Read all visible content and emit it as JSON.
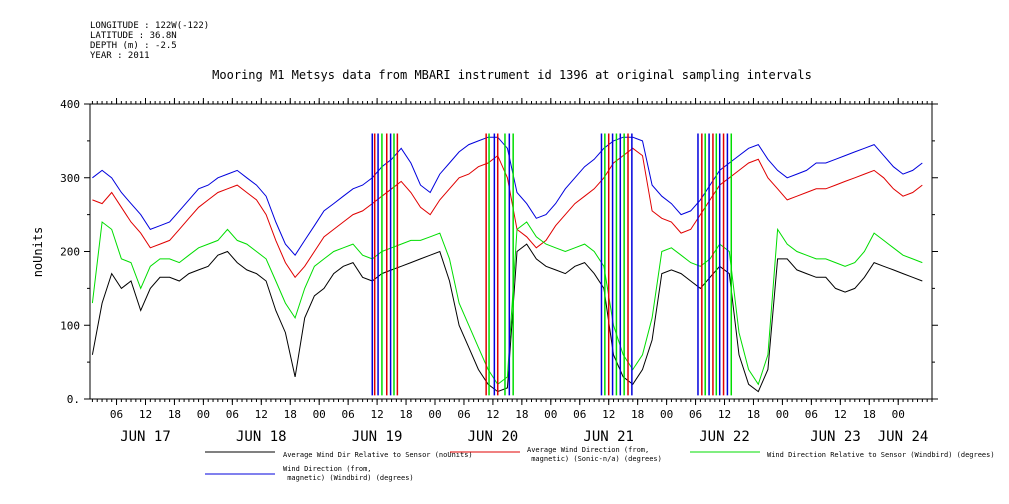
{
  "header": {
    "longitude": "LONGITUDE : 122W(-122)",
    "latitude": "LATITUDE : 36.8N",
    "depth": "DEPTH (m) : -2.5",
    "year": "YEAR : 2011"
  },
  "chart_data": {
    "type": "line",
    "title": "Mooring M1 Metsys data from MBARI instrument id 1396 at original sampling intervals",
    "ylabel": "noUnits",
    "xlabel": "",
    "ylim": [
      0,
      400
    ],
    "xlim": [
      0.5,
      175
    ],
    "y_ticks": [
      0,
      100,
      200,
      300,
      400
    ],
    "y_tick_labels": [
      "0.",
      "100",
      "200",
      "300",
      "400"
    ],
    "x_unit": "hours since 2011-06-16 00:00",
    "hour_ticks": [
      {
        "x": 6,
        "label": "06"
      },
      {
        "x": 12,
        "label": "12"
      },
      {
        "x": 18,
        "label": "18"
      },
      {
        "x": 24,
        "label": "00"
      },
      {
        "x": 30,
        "label": "06"
      },
      {
        "x": 36,
        "label": "12"
      },
      {
        "x": 42,
        "label": "18"
      },
      {
        "x": 48,
        "label": "00"
      },
      {
        "x": 54,
        "label": "06"
      },
      {
        "x": 60,
        "label": "12"
      },
      {
        "x": 66,
        "label": "18"
      },
      {
        "x": 72,
        "label": "00"
      },
      {
        "x": 78,
        "label": "06"
      },
      {
        "x": 84,
        "label": "12"
      },
      {
        "x": 90,
        "label": "18"
      },
      {
        "x": 96,
        "label": "00"
      },
      {
        "x": 102,
        "label": "06"
      },
      {
        "x": 108,
        "label": "12"
      },
      {
        "x": 114,
        "label": "18"
      },
      {
        "x": 120,
        "label": "00"
      },
      {
        "x": 126,
        "label": "06"
      },
      {
        "x": 132,
        "label": "12"
      },
      {
        "x": 138,
        "label": "18"
      },
      {
        "x": 144,
        "label": "00"
      },
      {
        "x": 150,
        "label": "06"
      },
      {
        "x": 156,
        "label": "12"
      },
      {
        "x": 162,
        "label": "18"
      },
      {
        "x": 168,
        "label": "00"
      }
    ],
    "day_labels": [
      {
        "x": 12,
        "label": "JUN 17"
      },
      {
        "x": 36,
        "label": "JUN 18"
      },
      {
        "x": 60,
        "label": "JUN 19"
      },
      {
        "x": 84,
        "label": "JUN 20"
      },
      {
        "x": 108,
        "label": "JUN 21"
      },
      {
        "x": 132,
        "label": "JUN 22"
      },
      {
        "x": 155,
        "label": "JUN 23"
      },
      {
        "x": 169,
        "label": "JUN 24"
      }
    ],
    "series": [
      {
        "name": "Average Wind Dir Relative to Sensor (noUnits)",
        "color": "#000000",
        "x": [
          1,
          3,
          5,
          7,
          9,
          11,
          13,
          15,
          17,
          19,
          21,
          23,
          25,
          27,
          29,
          31,
          33,
          35,
          37,
          39,
          41,
          43,
          45,
          47,
          49,
          51,
          53,
          55,
          57,
          59,
          61,
          63,
          65,
          67,
          69,
          71,
          73,
          75,
          77,
          79,
          81,
          83,
          85,
          87,
          89,
          91,
          93,
          95,
          97,
          99,
          101,
          103,
          105,
          107,
          109,
          111,
          113,
          115,
          117,
          119,
          121,
          123,
          125,
          127,
          129,
          131,
          133,
          135,
          137,
          139,
          141,
          143,
          145,
          147,
          149,
          151,
          153,
          155,
          157,
          159,
          161,
          163,
          165,
          167,
          169,
          171,
          173
        ],
        "values": [
          60,
          130,
          170,
          150,
          160,
          120,
          150,
          165,
          165,
          160,
          170,
          175,
          180,
          195,
          200,
          185,
          175,
          170,
          160,
          120,
          90,
          30,
          110,
          140,
          150,
          170,
          180,
          185,
          165,
          160,
          170,
          175,
          180,
          185,
          190,
          195,
          200,
          160,
          100,
          70,
          40,
          20,
          10,
          15,
          200,
          210,
          190,
          180,
          175,
          170,
          180,
          185,
          170,
          150,
          60,
          30,
          20,
          40,
          80,
          170,
          175,
          170,
          160,
          150,
          165,
          180,
          170,
          60,
          20,
          10,
          40,
          190,
          190,
          175,
          170,
          165,
          165,
          150,
          145,
          150,
          165,
          185,
          180,
          175,
          170,
          165,
          160
        ]
      },
      {
        "name": "Average Wind Direction (from, magnetic) (Sonic-n/a) (degrees)",
        "color": "#e00000",
        "x": [
          1,
          3,
          5,
          7,
          9,
          11,
          13,
          15,
          17,
          19,
          21,
          23,
          25,
          27,
          29,
          31,
          33,
          35,
          37,
          39,
          41,
          43,
          45,
          47,
          49,
          51,
          53,
          55,
          57,
          59,
          61,
          63,
          65,
          67,
          69,
          71,
          73,
          75,
          77,
          79,
          81,
          83,
          85,
          87,
          89,
          91,
          93,
          95,
          97,
          99,
          101,
          103,
          105,
          107,
          109,
          111,
          113,
          115,
          117,
          119,
          121,
          123,
          125,
          127,
          129,
          131,
          133,
          135,
          137,
          139,
          141,
          143,
          145,
          147,
          149,
          151,
          153,
          155,
          157,
          159,
          161,
          163,
          165,
          167,
          169,
          171,
          173
        ],
        "values": [
          270,
          265,
          280,
          260,
          240,
          225,
          205,
          210,
          215,
          230,
          245,
          260,
          270,
          280,
          285,
          290,
          280,
          270,
          250,
          215,
          185,
          165,
          180,
          200,
          220,
          230,
          240,
          250,
          255,
          265,
          275,
          285,
          295,
          280,
          260,
          250,
          270,
          285,
          300,
          305,
          315,
          320,
          330,
          300,
          230,
          220,
          205,
          215,
          235,
          250,
          265,
          275,
          285,
          300,
          320,
          330,
          340,
          330,
          255,
          245,
          240,
          225,
          230,
          250,
          270,
          290,
          300,
          310,
          320,
          325,
          300,
          285,
          270,
          275,
          280,
          285,
          285,
          290,
          295,
          300,
          305,
          310,
          300,
          285,
          275,
          280,
          290
        ]
      },
      {
        "name": "Wind Direction Relative to Sensor (Windbird) (degrees)",
        "color": "#00dd00",
        "x": [
          1,
          3,
          5,
          7,
          9,
          11,
          13,
          15,
          17,
          19,
          21,
          23,
          25,
          27,
          29,
          31,
          33,
          35,
          37,
          39,
          41,
          43,
          45,
          47,
          49,
          51,
          53,
          55,
          57,
          59,
          61,
          63,
          65,
          67,
          69,
          71,
          73,
          75,
          77,
          79,
          81,
          83,
          85,
          87,
          89,
          91,
          93,
          95,
          97,
          99,
          101,
          103,
          105,
          107,
          109,
          111,
          113,
          115,
          117,
          119,
          121,
          123,
          125,
          127,
          129,
          131,
          133,
          135,
          137,
          139,
          141,
          143,
          145,
          147,
          149,
          151,
          153,
          155,
          157,
          159,
          161,
          163,
          165,
          167,
          169,
          171,
          173
        ],
        "values": [
          130,
          240,
          230,
          190,
          185,
          150,
          180,
          190,
          190,
          185,
          195,
          205,
          210,
          215,
          230,
          215,
          210,
          200,
          190,
          160,
          130,
          110,
          150,
          180,
          190,
          200,
          205,
          210,
          195,
          190,
          200,
          205,
          210,
          215,
          215,
          220,
          225,
          190,
          130,
          100,
          70,
          40,
          20,
          30,
          230,
          240,
          220,
          210,
          205,
          200,
          205,
          210,
          200,
          180,
          100,
          60,
          40,
          60,
          110,
          200,
          205,
          195,
          185,
          180,
          190,
          210,
          200,
          90,
          40,
          20,
          60,
          230,
          210,
          200,
          195,
          190,
          190,
          185,
          180,
          185,
          200,
          225,
          215,
          205,
          195,
          190,
          185
        ]
      },
      {
        "name": "Wind Direction (from, magnetic) (Windbird) (degrees)",
        "color": "#0000dd",
        "x": [
          1,
          3,
          5,
          7,
          9,
          11,
          13,
          15,
          17,
          19,
          21,
          23,
          25,
          27,
          29,
          31,
          33,
          35,
          37,
          39,
          41,
          43,
          45,
          47,
          49,
          51,
          53,
          55,
          57,
          59,
          61,
          63,
          65,
          67,
          69,
          71,
          73,
          75,
          77,
          79,
          81,
          83,
          85,
          87,
          89,
          91,
          93,
          95,
          97,
          99,
          101,
          103,
          105,
          107,
          109,
          111,
          113,
          115,
          117,
          119,
          121,
          123,
          125,
          127,
          129,
          131,
          133,
          135,
          137,
          139,
          141,
          143,
          145,
          147,
          149,
          151,
          153,
          155,
          157,
          159,
          161,
          163,
          165,
          167,
          169,
          171,
          173
        ],
        "values": [
          300,
          310,
          300,
          280,
          265,
          250,
          230,
          235,
          240,
          255,
          270,
          285,
          290,
          300,
          305,
          310,
          300,
          290,
          275,
          240,
          210,
          195,
          215,
          235,
          255,
          265,
          275,
          285,
          290,
          300,
          315,
          325,
          340,
          320,
          290,
          280,
          305,
          320,
          335,
          345,
          350,
          355,
          355,
          340,
          280,
          265,
          245,
          250,
          265,
          285,
          300,
          315,
          325,
          340,
          350,
          355,
          355,
          350,
          290,
          275,
          265,
          250,
          255,
          270,
          290,
          310,
          320,
          330,
          340,
          345,
          325,
          310,
          300,
          305,
          310,
          320,
          320,
          325,
          330,
          335,
          340,
          345,
          330,
          315,
          305,
          310,
          320
        ]
      }
    ],
    "spikes": [
      {
        "x": 59.0,
        "color": "#0000dd"
      },
      {
        "x": 59.5,
        "color": "#e00000"
      },
      {
        "x": 60.2,
        "color": "#0000dd"
      },
      {
        "x": 61.0,
        "color": "#00dd00"
      },
      {
        "x": 62.0,
        "color": "#e00000"
      },
      {
        "x": 62.8,
        "color": "#0000dd"
      },
      {
        "x": 63.5,
        "color": "#00dd00"
      },
      {
        "x": 64.2,
        "color": "#e00000"
      },
      {
        "x": 82.6,
        "color": "#e00000"
      },
      {
        "x": 83.2,
        "color": "#00dd00"
      },
      {
        "x": 84.3,
        "color": "#0000dd"
      },
      {
        "x": 85.0,
        "color": "#e00000"
      },
      {
        "x": 86.5,
        "color": "#00dd00"
      },
      {
        "x": 87.4,
        "color": "#0000dd"
      },
      {
        "x": 88.2,
        "color": "#00dd00"
      },
      {
        "x": 106.5,
        "color": "#0000dd"
      },
      {
        "x": 107.2,
        "color": "#00dd00"
      },
      {
        "x": 108.0,
        "color": "#e00000"
      },
      {
        "x": 108.8,
        "color": "#0000dd"
      },
      {
        "x": 109.6,
        "color": "#00dd00"
      },
      {
        "x": 110.4,
        "color": "#0000dd"
      },
      {
        "x": 111.2,
        "color": "#00dd00"
      },
      {
        "x": 112.0,
        "color": "#e00000"
      },
      {
        "x": 112.8,
        "color": "#0000dd"
      },
      {
        "x": 126.5,
        "color": "#0000dd"
      },
      {
        "x": 127.3,
        "color": "#e00000"
      },
      {
        "x": 128.0,
        "color": "#00dd00"
      },
      {
        "x": 128.8,
        "color": "#0000dd"
      },
      {
        "x": 129.6,
        "color": "#e00000"
      },
      {
        "x": 130.3,
        "color": "#00dd00"
      },
      {
        "x": 131.0,
        "color": "#0000dd"
      },
      {
        "x": 131.8,
        "color": "#e00000"
      },
      {
        "x": 132.6,
        "color": "#0000dd"
      },
      {
        "x": 133.4,
        "color": "#00dd00"
      }
    ],
    "legend_position": "bottom"
  }
}
